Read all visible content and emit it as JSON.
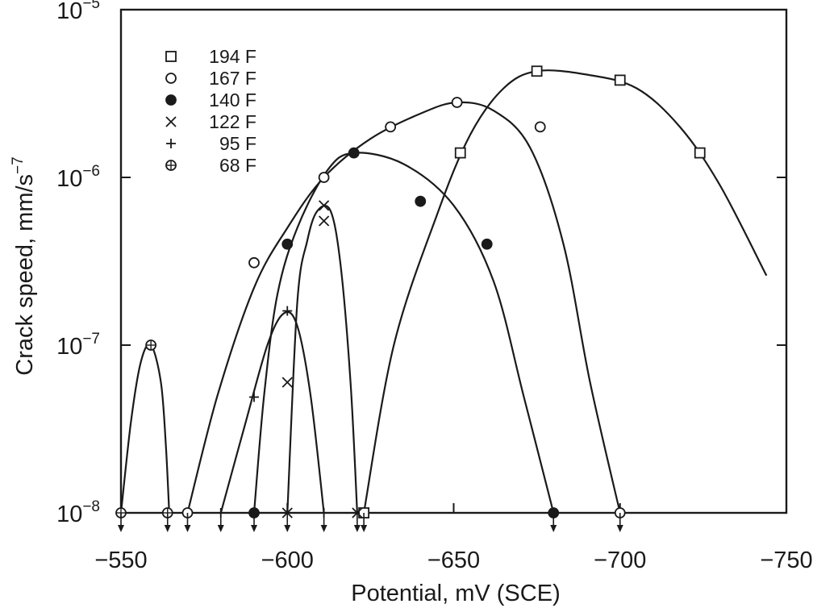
{
  "chart_data": {
    "type": "scatter",
    "xlabel": "Potential, mV (SCE)",
    "ylabel": "Crack speed, mm/s",
    "ylabel_exponent": "−7",
    "xlim": [
      -550,
      -750
    ],
    "ylim": [
      1e-08,
      1e-05
    ],
    "yscale": "log",
    "x_ticks": [
      -550,
      -600,
      -650,
      -700,
      -750
    ],
    "x_tick_labels": [
      "−550",
      "−600",
      "−650",
      "−700",
      "−750"
    ],
    "y_ticks": [
      {
        "value": 1e-08,
        "base": "10",
        "exp": "−8"
      },
      {
        "value": 1e-07,
        "base": "10",
        "exp": "−7"
      },
      {
        "value": 1e-06,
        "base": "10",
        "exp": "−6"
      },
      {
        "value": 1e-05,
        "base": "10",
        "exp": "−5"
      }
    ],
    "legend_position": "top-left",
    "grid": false,
    "series": [
      {
        "name": "194 F",
        "marker": "square",
        "points": [
          [
            -675,
            4.3e-06
          ],
          [
            -700,
            3.8e-06
          ],
          [
            -724,
            1.4e-06
          ],
          [
            -652,
            1.4e-06
          ],
          [
            -623,
            1e-08
          ]
        ],
        "curve": [
          [
            -623,
            1e-08
          ],
          [
            -632,
            1e-07
          ],
          [
            -645,
            6e-07
          ],
          [
            -655,
            1.8e-06
          ],
          [
            -665,
            3.4e-06
          ],
          [
            -675,
            4.3e-06
          ],
          [
            -690,
            4.1e-06
          ],
          [
            -705,
            3.4e-06
          ],
          [
            -718,
            2e-06
          ],
          [
            -730,
            9e-07
          ],
          [
            -744,
            2.6e-07
          ]
        ]
      },
      {
        "name": "167 F",
        "marker": "circle-open",
        "points": [
          [
            -570,
            1e-08
          ],
          [
            -590,
            3.1e-07
          ],
          [
            -611,
            1e-06
          ],
          [
            -631,
            2e-06
          ],
          [
            -651,
            2.8e-06
          ],
          [
            -676,
            2e-06
          ],
          [
            -700,
            1e-08
          ]
        ],
        "curve": [
          [
            -570,
            1e-08
          ],
          [
            -579,
            5e-08
          ],
          [
            -590,
            2.2e-07
          ],
          [
            -600,
            5e-07
          ],
          [
            -611,
            1e-06
          ],
          [
            -625,
            1.7e-06
          ],
          [
            -640,
            2.4e-06
          ],
          [
            -651,
            2.8e-06
          ],
          [
            -662,
            2.5e-06
          ],
          [
            -673,
            1.5e-06
          ],
          [
            -683,
            4e-07
          ],
          [
            -691,
            6e-08
          ],
          [
            -700,
            1e-08
          ]
        ]
      },
      {
        "name": "140 F",
        "marker": "circle-filled",
        "points": [
          [
            -590,
            1e-08
          ],
          [
            -600,
            4e-07
          ],
          [
            -620,
            1.4e-06
          ],
          [
            -640,
            7.2e-07
          ],
          [
            -660,
            4e-07
          ],
          [
            -680,
            1e-08
          ]
        ],
        "curve": [
          [
            -590,
            1e-08
          ],
          [
            -593,
            5e-08
          ],
          [
            -597,
            2e-07
          ],
          [
            -603,
            5e-07
          ],
          [
            -612,
            1.1e-06
          ],
          [
            -620,
            1.4e-06
          ],
          [
            -635,
            1.2e-06
          ],
          [
            -650,
            6.8e-07
          ],
          [
            -662,
            2.4e-07
          ],
          [
            -671,
            5e-08
          ],
          [
            -680,
            1e-08
          ]
        ]
      },
      {
        "name": "122 F",
        "marker": "cross",
        "points": [
          [
            -600,
            1e-08
          ],
          [
            -600,
            6e-08
          ],
          [
            -611,
            5.5e-07
          ],
          [
            -611,
            6.8e-07
          ],
          [
            -621,
            1e-08
          ]
        ],
        "curve": [
          [
            -600,
            1e-08
          ],
          [
            -603,
            1.8e-07
          ],
          [
            -606,
            4.2e-07
          ],
          [
            -609,
            6.3e-07
          ],
          [
            -613,
            6.3e-07
          ],
          [
            -616,
            3e-07
          ],
          [
            -619,
            6e-08
          ],
          [
            -621,
            1e-08
          ]
        ]
      },
      {
        "name": "95 F",
        "marker": "plus",
        "points": [
          [
            -580,
            1e-08
          ],
          [
            -590,
            4.9e-08
          ],
          [
            -600,
            1.6e-07
          ],
          [
            -611,
            1e-08
          ]
        ],
        "curve": [
          [
            -580,
            1e-08
          ],
          [
            -587,
            3.2e-08
          ],
          [
            -594,
            1e-07
          ],
          [
            -599,
            1.55e-07
          ],
          [
            -603,
            1.3e-07
          ],
          [
            -607,
            5e-08
          ],
          [
            -611,
            1e-08
          ]
        ]
      },
      {
        "name": "68 F",
        "marker": "circle-plus",
        "points": [
          [
            -550,
            1e-08
          ],
          [
            -559,
            1e-07
          ],
          [
            -564,
            1e-08
          ]
        ],
        "curve": [
          [
            -550,
            1e-08
          ],
          [
            -553,
            3.5e-08
          ],
          [
            -556,
            8e-08
          ],
          [
            -559,
            1e-07
          ],
          [
            -562,
            6e-08
          ],
          [
            -563.5,
            2.5e-08
          ],
          [
            -564.5,
            1e-08
          ]
        ]
      }
    ],
    "baseline_arrows_at": [
      -550,
      -564,
      -570,
      -580,
      -590,
      -600,
      -611,
      -621,
      -623,
      -680,
      -700
    ]
  }
}
